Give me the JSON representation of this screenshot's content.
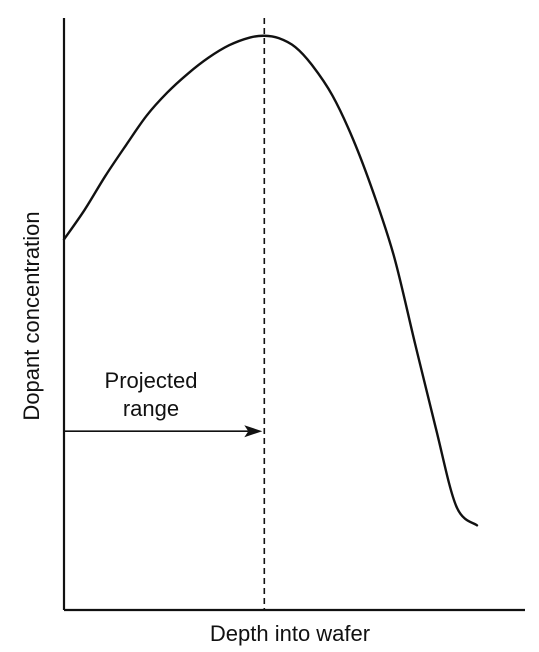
{
  "chart_data": {
    "type": "line",
    "title": "",
    "xlabel": "Depth into wafer",
    "ylabel": "Dopant concentration",
    "xlim": [
      0,
      100
    ],
    "ylim": [
      0,
      100
    ],
    "grid": false,
    "legend": "none",
    "series": [
      {
        "x": [
          0,
          5,
          10,
          15,
          20,
          25,
          30,
          35,
          40,
          45,
          48.5,
          52,
          56,
          60,
          65,
          70,
          75,
          80,
          85,
          90,
          95,
          100
        ],
        "y": [
          62.6,
          67.6,
          73.3,
          78.5,
          83.5,
          87.4,
          90.6,
          93.3,
          95.4,
          96.7,
          97.0,
          96.6,
          95.1,
          92.1,
          86.9,
          79.5,
          70.3,
          59.5,
          45.0,
          30.8,
          17.5,
          14.3
        ]
      }
    ],
    "peak_x": 48.5,
    "annotation": {
      "text_line1": "Projected",
      "text_line2": "range",
      "arrow_y": 30.2
    }
  },
  "colors": {
    "ink": "#111111",
    "background": "#ffffff"
  }
}
